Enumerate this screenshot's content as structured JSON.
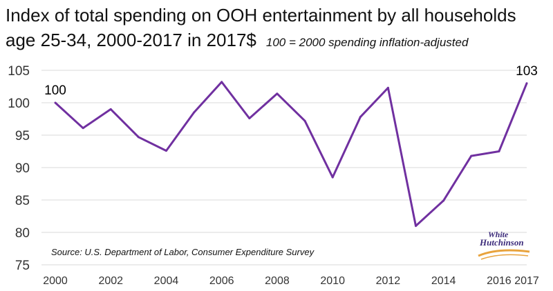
{
  "title": {
    "line1": "Index of total spending on OOH entertainment by all households",
    "line2": "age 25-34, 2000-2017 in 2017$",
    "subtitle": "100 = 2000 spending inflation-adjusted"
  },
  "source": "Source: U.S. Department of Labor, Consumer Expenditure Survey",
  "logo": {
    "text_line1": "White",
    "text_line2": "Hutchinson"
  },
  "colors": {
    "line": "#7030a0",
    "grid": "#d9d9d9",
    "axis_text": "#333333"
  },
  "chart_data": {
    "type": "line",
    "x": [
      2000,
      2001,
      2002,
      2003,
      2004,
      2005,
      2006,
      2007,
      2008,
      2009,
      2010,
      2011,
      2012,
      2013,
      2014,
      2015,
      2016,
      2017
    ],
    "series": [
      {
        "values": [
          100,
          96.1,
          99,
          94.7,
          92.6,
          98.5,
          103.2,
          97.6,
          101.4,
          97.2,
          88.5,
          97.8,
          102.3,
          81,
          84.9,
          91.8,
          92.5,
          103
        ]
      }
    ],
    "x_ticks": [
      2000,
      2002,
      2004,
      2006,
      2008,
      2010,
      2012,
      2014,
      2016,
      2017
    ],
    "y_ticks": [
      75,
      80,
      85,
      90,
      95,
      100,
      105
    ],
    "ylim": [
      75,
      105
    ],
    "xlim": [
      2000,
      2017
    ],
    "grid": "horizontal",
    "annotations": [
      {
        "x": 2000,
        "label": "100"
      },
      {
        "x": 2017,
        "label": "103"
      }
    ],
    "legend": "none"
  }
}
